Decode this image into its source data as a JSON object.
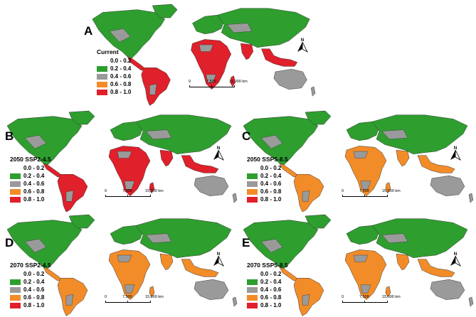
{
  "panels": [
    {
      "id": "A",
      "legend_title": "Current"
    },
    {
      "id": "B",
      "legend_title": "2050 SSP2-4.5"
    },
    {
      "id": "C",
      "legend_title": "2050 SSP5-8.5"
    },
    {
      "id": "D",
      "legend_title": "2070 SSP2-4.5"
    },
    {
      "id": "E",
      "legend_title": "2070 SSP5-8.5"
    }
  ],
  "legend_classes": [
    {
      "range": "0.0 - 0.2",
      "color": "#ffffff"
    },
    {
      "range": "0.2 - 0.4",
      "color": "#2e9e2e"
    },
    {
      "range": "0.4 - 0.6",
      "color": "#9a9a9a"
    },
    {
      "range": "0.6 - 0.8",
      "color": "#f28c28"
    },
    {
      "range": "0.8 - 1.0",
      "color": "#e0202a"
    }
  ],
  "scale": {
    "zero": "0",
    "mid": "7,500",
    "end": "15,000 km"
  },
  "north_label": "N",
  "panel_colors": {
    "A": {
      "na": "#2e9e2e",
      "sa": "#e0202a",
      "af": "#e0202a",
      "eu": "#2e9e2e",
      "as": "#2e9e2e",
      "sea": "#e0202a",
      "au": "#9a9a9a"
    },
    "B": {
      "na": "#2e9e2e",
      "sa": "#e0202a",
      "af": "#e0202a",
      "eu": "#2e9e2e",
      "as": "#2e9e2e",
      "sea": "#e0202a",
      "au": "#9a9a9a"
    },
    "C": {
      "na": "#2e9e2e",
      "sa": "#f28c28",
      "af": "#f28c28",
      "eu": "#2e9e2e",
      "as": "#2e9e2e",
      "sea": "#f28c28",
      "au": "#9a9a9a"
    },
    "D": {
      "na": "#2e9e2e",
      "sa": "#f28c28",
      "af": "#f28c28",
      "eu": "#2e9e2e",
      "as": "#2e9e2e",
      "sea": "#f28c28",
      "au": "#9a9a9a"
    },
    "E": {
      "na": "#2e9e2e",
      "sa": "#f28c28",
      "af": "#f28c28",
      "eu": "#2e9e2e",
      "as": "#2e9e2e",
      "sea": "#f28c28",
      "au": "#9a9a9a"
    }
  }
}
